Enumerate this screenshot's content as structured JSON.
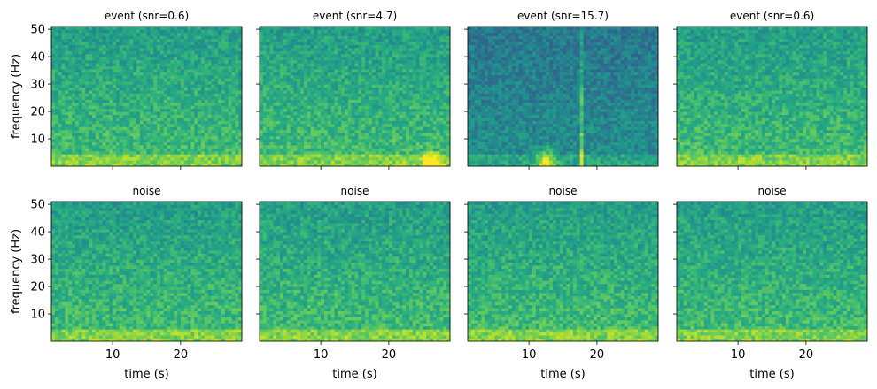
{
  "chart_data": {
    "type": "heatmap",
    "layout": {
      "rows": 2,
      "cols": 4,
      "sharex": true,
      "sharey": true
    },
    "panels": [
      {
        "title": "event (snr=0.6)",
        "kind": "event",
        "snr": 0.6,
        "events": []
      },
      {
        "title": "event (snr=4.7)",
        "kind": "event",
        "snr": 4.7,
        "events": [
          {
            "t": 26.5,
            "f_max": 6
          }
        ]
      },
      {
        "title": "event (snr=15.7)",
        "kind": "event",
        "snr": 15.7,
        "events": [
          {
            "t": 12.5,
            "f_max": 8
          },
          {
            "t": 17.8,
            "f_max": 50
          }
        ]
      },
      {
        "title": "event (snr=0.6)",
        "kind": "event",
        "snr": 0.6,
        "events": []
      },
      {
        "title": "noise",
        "kind": "noise",
        "events": []
      },
      {
        "title": "noise",
        "kind": "noise",
        "events": []
      },
      {
        "title": "noise",
        "kind": "noise",
        "events": []
      },
      {
        "title": "noise",
        "kind": "noise",
        "events": []
      }
    ],
    "xlabel": "time (s)",
    "ylabel": "frequency (Hz)",
    "xlim": [
      1,
      29
    ],
    "ylim": [
      0,
      51
    ],
    "xticks": [
      10,
      20
    ],
    "yticks": [
      10,
      20,
      30,
      40,
      50
    ],
    "colormap": "viridis"
  },
  "colors": {
    "axis": "#000000",
    "cmap_low": "#440154",
    "cmap_mid": "#21918c",
    "cmap_high": "#fde725"
  }
}
